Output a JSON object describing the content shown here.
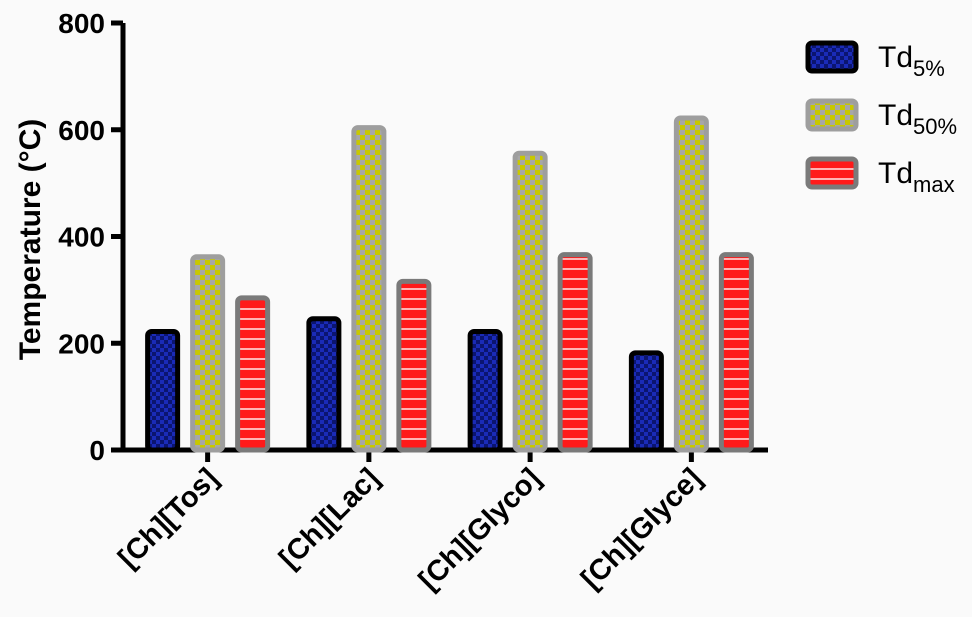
{
  "chart_data": {
    "type": "bar",
    "title": "",
    "xlabel": "",
    "ylabel": "Temperature (°C)",
    "ylim": [
      0,
      800
    ],
    "yticks": [
      0,
      200,
      400,
      600,
      800
    ],
    "categories": [
      "[Ch][Tos]",
      "[Ch][Lac]",
      "[Ch][Glyco]",
      "[Ch][Glyce]"
    ],
    "series": [
      {
        "name": "Td5%",
        "base": "Td",
        "sub": "5%",
        "fill": "#1a2bb8",
        "border": "#000000",
        "pattern": "checker",
        "values": [
          222,
          246,
          222,
          182
        ]
      },
      {
        "name": "Td50%",
        "base": "Td",
        "sub": "50%",
        "fill": "#c8c800",
        "border": "#9e9e9e",
        "pattern": "checker",
        "values": [
          362,
          604,
          556,
          622
        ]
      },
      {
        "name": "Tdmax",
        "base": "Td",
        "sub": "max",
        "fill": "#ff1a1a",
        "border": "#7a7a7a",
        "pattern": "stripes",
        "values": [
          285,
          316,
          366,
          366
        ]
      }
    ],
    "legend_position": "top-right",
    "grid": false
  }
}
